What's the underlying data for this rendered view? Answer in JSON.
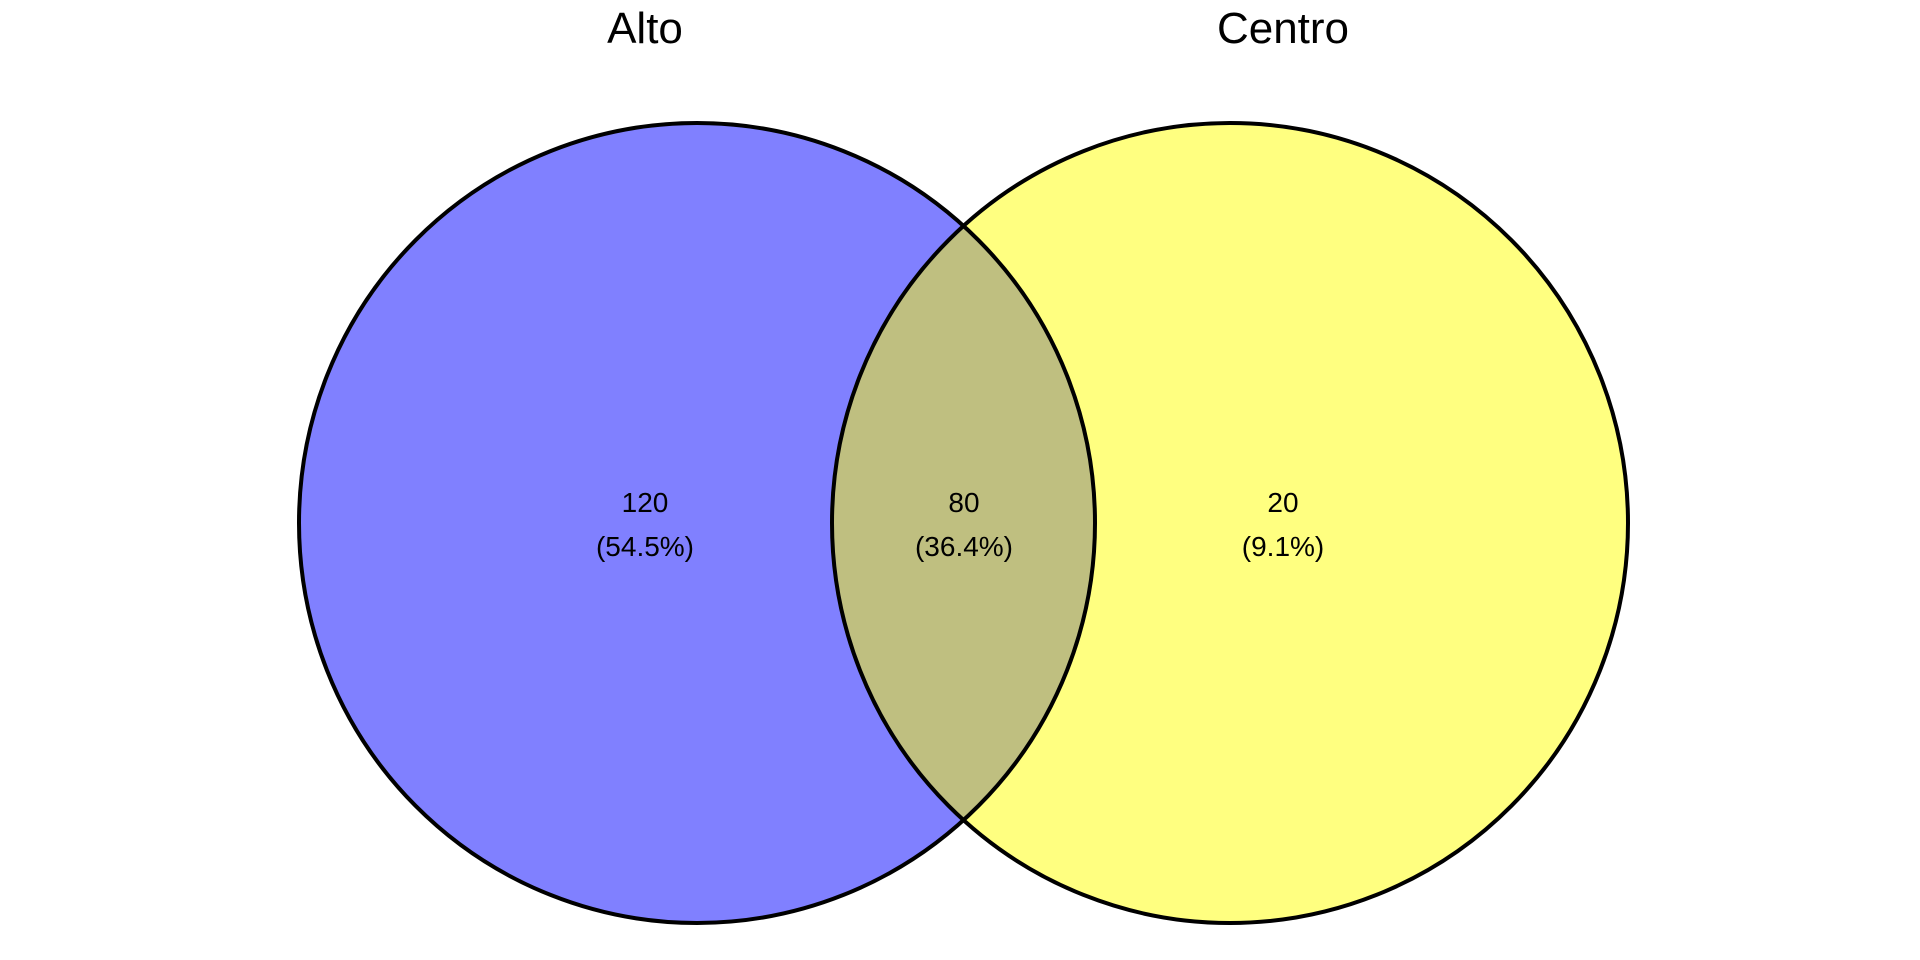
{
  "sets": [
    {
      "label": "Alto",
      "color": "#8080ff"
    },
    {
      "label": "Centro",
      "color": "#ffff80"
    }
  ],
  "overlap_color": "#bfbf80",
  "outline_color": "#000000",
  "regions": {
    "alto_only": {
      "count": "120",
      "percent": "(54.5%)"
    },
    "both": {
      "count": "80",
      "percent": "(36.4%)"
    },
    "centro_only": {
      "count": "20",
      "percent": "(9.1%)"
    }
  }
}
